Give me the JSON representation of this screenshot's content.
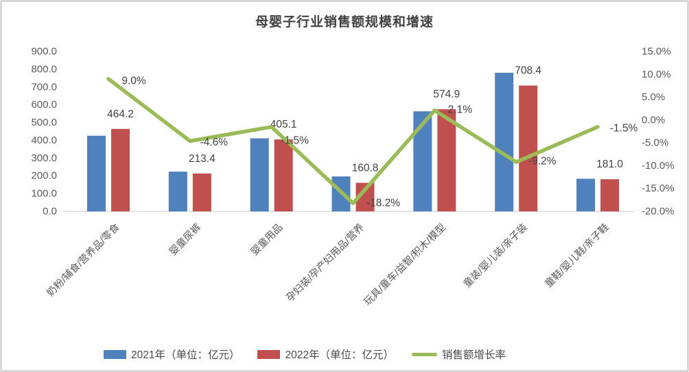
{
  "chart_data": {
    "type": "combo-bar-line",
    "title": "母婴子行业销售额规模和增速",
    "categories": [
      "奶粉/辅食/营养品/零食",
      "婴童尿裤",
      "婴童用品",
      "孕妇装/孕产妇用品/营养",
      "玩具/童车/益智/积木/模型",
      "童装/婴儿装/亲子装",
      "童鞋/婴儿鞋/亲子鞋"
    ],
    "series": [
      {
        "name": "2021年（单位：亿元）",
        "type": "bar",
        "color": "#4f81bd",
        "axis": "left",
        "values": [
          425.9,
          223.7,
          411.3,
          196.6,
          563.1,
          780.2,
          183.8
        ]
      },
      {
        "name": "2022年（单位：亿元）",
        "type": "bar",
        "color": "#c0504d",
        "axis": "left",
        "values": [
          464.2,
          213.4,
          405.1,
          160.8,
          574.9,
          708.4,
          181.0
        ],
        "labels": [
          "464.2",
          "213.4",
          "405.1",
          "160.8",
          "574.9",
          "708.4",
          "181.0"
        ]
      },
      {
        "name": "销售额增长率",
        "type": "line",
        "color": "#9bbb59",
        "axis": "right",
        "values": [
          9.0,
          -4.6,
          -1.5,
          -18.2,
          2.1,
          -9.2,
          -1.5
        ],
        "labels": [
          "9.0%",
          "-4.6%",
          "-1.5%",
          "-18.2%",
          "2.1%",
          "-9.2%",
          "-1.5%"
        ]
      }
    ],
    "left_axis": {
      "min": 0,
      "max": 900,
      "step": 100,
      "tick_labels": [
        "900.0",
        "800.0",
        "700.0",
        "600.0",
        "500.0",
        "400.0",
        "300.0",
        "200.0",
        "100.0",
        "0.0"
      ]
    },
    "right_axis": {
      "min": -20,
      "max": 15,
      "step": 5,
      "tick_labels": [
        "15.0%",
        "10.0%",
        "5.0%",
        "0.0%",
        "-5.0%",
        "-10.0%",
        "-15.0%",
        "-20.0%"
      ]
    },
    "grid": false,
    "legend_position": "bottom",
    "colors": {
      "axis_text": "#595959",
      "data_label_text": "#404040",
      "baseline": "#d9d9d9",
      "leader_line": "#a6a6a6",
      "card_border": "#d8d8d8"
    }
  }
}
